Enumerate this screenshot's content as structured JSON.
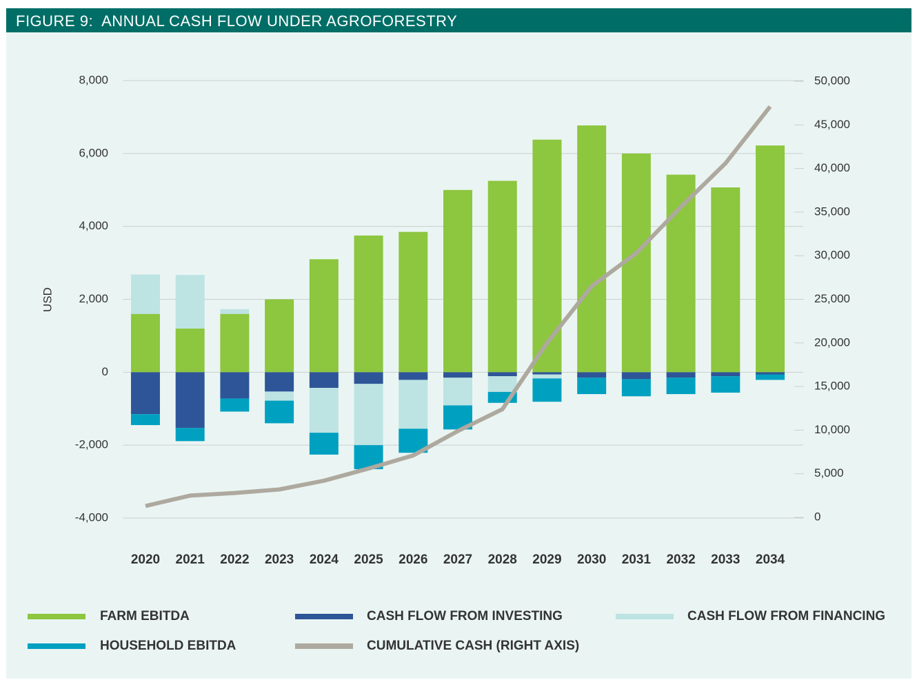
{
  "chart_data": {
    "type": "bar",
    "title": "FIGURE 9:  ANNUAL CASH FLOW UNDER AGROFORESTRY",
    "y_label": "USD",
    "categories": [
      "2020",
      "2021",
      "2022",
      "2023",
      "2024",
      "2025",
      "2026",
      "2027",
      "2028",
      "2029",
      "2030",
      "2031",
      "2032",
      "2033",
      "2034"
    ],
    "series": [
      {
        "name": "FARM EBITDA",
        "color": "#8dc63f",
        "values": [
          1600,
          1200,
          1600,
          2000,
          3100,
          3750,
          3850,
          5000,
          5250,
          6380,
          6770,
          6000,
          5420,
          5070,
          6220
        ]
      },
      {
        "name": "CASH FLOW FROM INVESTING",
        "color": "#2e5597",
        "values": [
          -1150,
          -1530,
          -720,
          -530,
          -430,
          -320,
          -210,
          -150,
          -110,
          -60,
          -150,
          -190,
          -150,
          -110,
          -60
        ]
      },
      {
        "name": "CASH FLOW FROM FINANCING",
        "color": "#bde3e3",
        "values": [
          1080,
          1470,
          130,
          -250,
          -1230,
          -1680,
          -1340,
          -760,
          -430,
          -110,
          0,
          0,
          0,
          0,
          0
        ]
      },
      {
        "name": "HOUSEHOLD EBITDA",
        "color": "#00a0c1",
        "values": [
          -300,
          -360,
          -360,
          -620,
          -600,
          -660,
          -660,
          -660,
          -300,
          -640,
          -450,
          -470,
          -450,
          -450,
          -150
        ]
      },
      {
        "name": "CUMULATIVE CASH (RIGHT AXIS)",
        "color": "#aea99f",
        "type": "line",
        "axis": "y2",
        "values": [
          1300,
          2500,
          2800,
          3200,
          4200,
          5600,
          7100,
          9900,
          12400,
          20000,
          26500,
          30300,
          35600,
          40600,
          47100
        ]
      }
    ],
    "ylim": [
      -4000,
      8000
    ],
    "yticks": [
      {
        "value": -4000,
        "label": "-4,000"
      },
      {
        "value": -2000,
        "label": "-2,000"
      },
      0,
      {
        "value": 2000,
        "label": "2,000"
      },
      {
        "value": 4000,
        "label": "4,000"
      },
      {
        "value": 6000,
        "label": "6,000"
      },
      {
        "value": 8000,
        "label": "8,000"
      }
    ],
    "y2lim": [
      0,
      50000
    ],
    "y2ticks": [
      0,
      {
        "value": 5000,
        "label": "5,000"
      },
      {
        "value": 10000,
        "label": "10,000"
      },
      {
        "value": 15000,
        "label": "15,000"
      },
      {
        "value": 20000,
        "label": "20,000"
      },
      {
        "value": 25000,
        "label": "25,000"
      },
      {
        "value": 30000,
        "label": "30,000"
      },
      {
        "value": 35000,
        "label": "35,000"
      },
      {
        "value": 40000,
        "label": "40,000"
      },
      {
        "value": 45000,
        "label": "45,000"
      },
      {
        "value": 50000,
        "label": "50,000"
      }
    ],
    "grid": true
  }
}
